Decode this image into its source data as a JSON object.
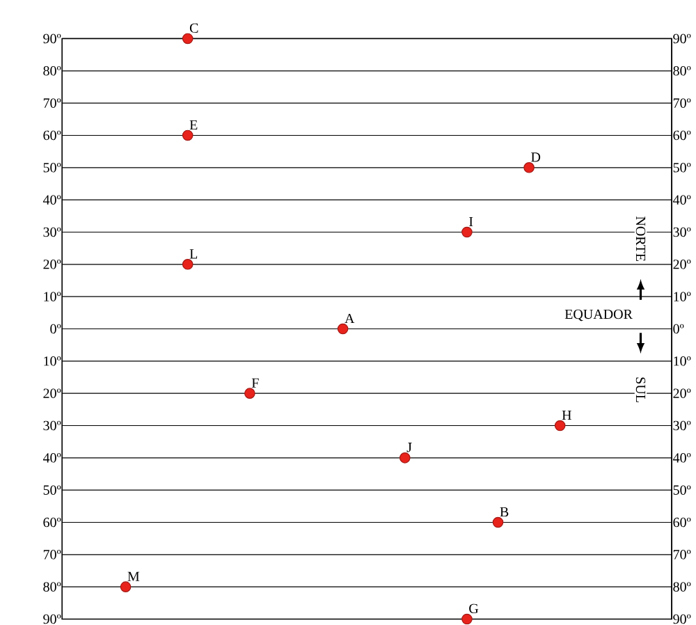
{
  "chart_data": {
    "type": "scatter",
    "categories": [
      null,
      null,
      null,
      null,
      null,
      null,
      null,
      null,
      null,
      null,
      null,
      null,
      null,
      null,
      null,
      null,
      null,
      null,
      null,
      null
    ],
    "series": [
      {
        "name": "M",
        "color": "#e8231c",
        "values": [
          null,
          null,
          -80,
          null,
          null,
          null,
          null,
          null,
          null,
          null,
          null,
          null,
          null,
          null,
          null,
          null,
          null,
          null,
          null,
          null
        ]
      },
      {
        "name": "C",
        "color": "#e8231c",
        "values": [
          null,
          null,
          null,
          null,
          90,
          null,
          null,
          null,
          null,
          null,
          null,
          null,
          null,
          null,
          null,
          null,
          null,
          null,
          null,
          null
        ]
      },
      {
        "name": "E",
        "color": "#e8231c",
        "values": [
          null,
          null,
          null,
          null,
          60,
          null,
          null,
          null,
          null,
          null,
          null,
          null,
          null,
          null,
          null,
          null,
          null,
          null,
          null,
          null
        ]
      },
      {
        "name": "L",
        "color": "#e8231c",
        "values": [
          null,
          null,
          null,
          null,
          20,
          null,
          null,
          null,
          null,
          null,
          null,
          null,
          null,
          null,
          null,
          null,
          null,
          null,
          null,
          null
        ]
      },
      {
        "name": "F",
        "color": "#e8231c",
        "values": [
          null,
          null,
          null,
          null,
          null,
          null,
          -20,
          null,
          null,
          null,
          null,
          null,
          null,
          null,
          null,
          null,
          null,
          null,
          null,
          null
        ]
      },
      {
        "name": "A",
        "color": "#e8231c",
        "values": [
          null,
          null,
          null,
          null,
          null,
          null,
          null,
          null,
          null,
          0,
          null,
          null,
          null,
          null,
          null,
          null,
          null,
          null,
          null,
          null
        ]
      },
      {
        "name": "J",
        "color": "#e8231c",
        "values": [
          null,
          null,
          null,
          null,
          null,
          null,
          null,
          null,
          null,
          null,
          null,
          -40,
          null,
          null,
          null,
          null,
          null,
          null,
          null,
          null
        ]
      },
      {
        "name": "I",
        "color": "#e8231c",
        "values": [
          null,
          null,
          null,
          null,
          null,
          null,
          null,
          null,
          null,
          null,
          null,
          null,
          null,
          30,
          null,
          null,
          null,
          null,
          null,
          null
        ]
      },
      {
        "name": "G",
        "color": "#e8231c",
        "values": [
          null,
          null,
          null,
          null,
          null,
          null,
          null,
          null,
          null,
          null,
          null,
          null,
          null,
          -90,
          null,
          null,
          null,
          null,
          null,
          null
        ]
      },
      {
        "name": "B",
        "color": "#e8231c",
        "values": [
          null,
          null,
          null,
          null,
          null,
          null,
          null,
          null,
          null,
          null,
          null,
          null,
          null,
          null,
          -60,
          null,
          null,
          null,
          null,
          null
        ]
      },
      {
        "name": "D",
        "color": "#e8231c",
        "values": [
          null,
          null,
          null,
          null,
          null,
          null,
          null,
          null,
          null,
          null,
          null,
          null,
          null,
          null,
          null,
          50,
          null,
          null,
          null,
          null
        ]
      },
      {
        "name": "H",
        "color": "#e8231c",
        "values": [
          null,
          null,
          null,
          null,
          null,
          null,
          null,
          null,
          null,
          null,
          null,
          null,
          null,
          null,
          null,
          null,
          -30,
          null,
          null,
          null
        ]
      }
    ],
    "ylim": [
      -90,
      90
    ],
    "yticks": [
      {
        "value": -90,
        "label": "90º"
      },
      {
        "value": -80,
        "label": "80º"
      },
      {
        "value": -70,
        "label": "70º"
      },
      {
        "value": -60,
        "label": "60º"
      },
      {
        "value": -50,
        "label": "50º"
      },
      {
        "value": -40,
        "label": "40º"
      },
      {
        "value": -30,
        "label": "30º"
      },
      {
        "value": -20,
        "label": "20º"
      },
      {
        "value": -10,
        "label": "10º"
      },
      {
        "value": 0,
        "label": "0º"
      },
      {
        "value": 10,
        "label": "10º"
      },
      {
        "value": 20,
        "label": "20º"
      },
      {
        "value": 30,
        "label": "30º"
      },
      {
        "value": 40,
        "label": "40º"
      },
      {
        "value": 50,
        "label": "50º"
      },
      {
        "value": 60,
        "label": "60º"
      },
      {
        "value": 70,
        "label": "70º"
      },
      {
        "value": 80,
        "label": "80º"
      },
      {
        "value": 90,
        "label": "90º"
      }
    ],
    "y2lim": [
      -90,
      90
    ],
    "y2ticks": [
      {
        "value": -90,
        "label": "90º"
      },
      {
        "value": -80,
        "label": "80º"
      },
      {
        "value": -70,
        "label": "70º"
      },
      {
        "value": -60,
        "label": "60º"
      },
      {
        "value": -50,
        "label": "50º"
      },
      {
        "value": -40,
        "label": "40º"
      },
      {
        "value": -30,
        "label": "30º"
      },
      {
        "value": -20,
        "label": "20º"
      },
      {
        "value": -10,
        "label": "10º"
      },
      {
        "value": 0,
        "label": "0º"
      },
      {
        "value": 10,
        "label": "10º"
      },
      {
        "value": 20,
        "label": "20º"
      },
      {
        "value": 30,
        "label": "30º"
      },
      {
        "value": 40,
        "label": "40º"
      },
      {
        "value": 50,
        "label": "50º"
      },
      {
        "value": 60,
        "label": "60º"
      },
      {
        "value": 70,
        "label": "70º"
      },
      {
        "value": 80,
        "label": "80º"
      },
      {
        "value": 90,
        "label": "90º"
      }
    ],
    "grid": "y",
    "tick_labels": "y",
    "marker": "circle",
    "legend": false,
    "annotations": [
      "NORTE",
      "EQUADOR",
      "SUL"
    ]
  }
}
